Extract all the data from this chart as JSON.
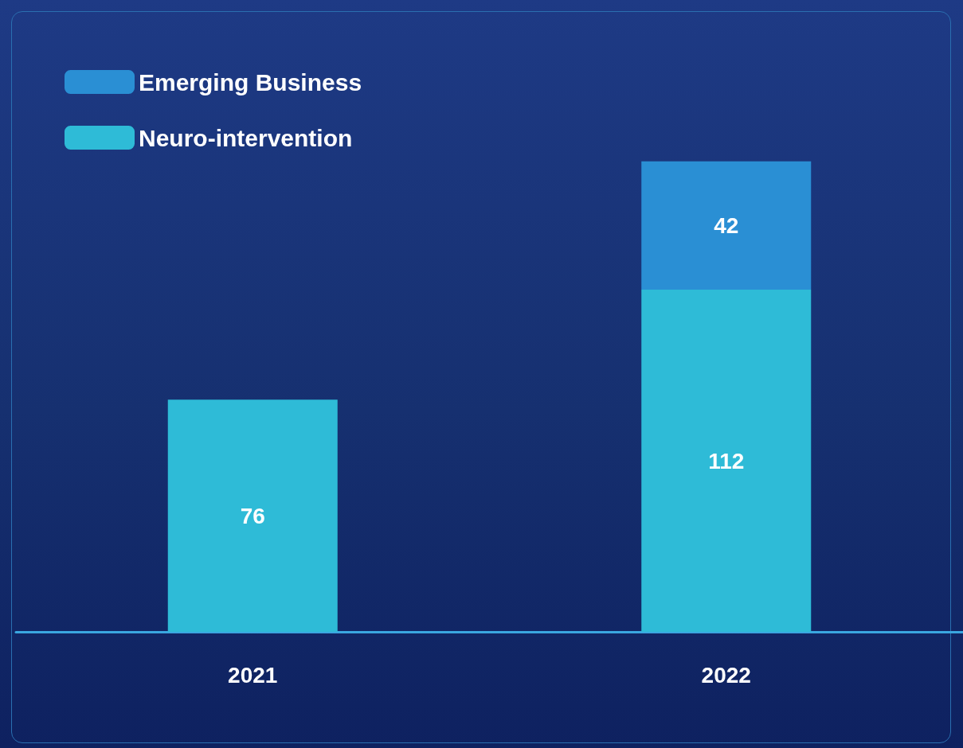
{
  "chart_data": {
    "type": "bar",
    "stacked": true,
    "categories": [
      "2021",
      "2022"
    ],
    "series": [
      {
        "name": "Neuro-intervention",
        "color": "#2ebbd7",
        "values": [
          76,
          112
        ]
      },
      {
        "name": "Emerging Business",
        "color": "#2a8fd4",
        "values": [
          null,
          42
        ]
      }
    ],
    "data_labels": true,
    "tick_labels": "x",
    "legend": "top left"
  }
}
